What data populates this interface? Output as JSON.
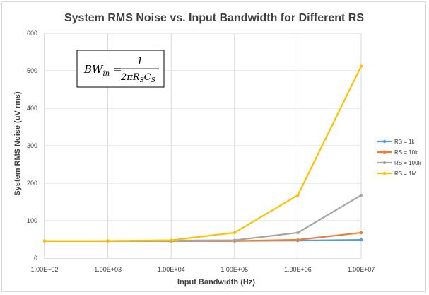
{
  "chart_data": {
    "type": "line",
    "title": "System RMS Noise vs. Input Bandwidth for Different RS",
    "xlabel": "Input Bandwidth (Hz)",
    "ylabel": "System RMS Noise (uV rms)",
    "x_scale": "log",
    "categories": [
      "1.00E+02",
      "1.00E+03",
      "1.00E+04",
      "1.00E+05",
      "1.00E+06",
      "1.00E+07"
    ],
    "x": [
      100,
      1000,
      10000,
      100000,
      1000000,
      10000000
    ],
    "ylim": [
      0,
      600
    ],
    "yticks": [
      0,
      100,
      200,
      300,
      400,
      500,
      600
    ],
    "grid": true,
    "legend_position": "right",
    "series": [
      {
        "name": "RS = 1k",
        "color": "#5b9bd5",
        "values": [
          46,
          46,
          46,
          46,
          47,
          49
        ]
      },
      {
        "name": "RS = 10k",
        "color": "#ed7d31",
        "values": [
          46,
          46,
          46,
          46,
          49,
          68
        ]
      },
      {
        "name": "RS = 100k",
        "color": "#a5a5a5",
        "values": [
          46,
          46,
          47,
          48,
          68,
          168
        ]
      },
      {
        "name": "RS = 1M",
        "color": "#ffc000",
        "values": [
          46,
          46,
          48,
          68,
          168,
          512
        ]
      }
    ],
    "annotation": {
      "lhs": "BW",
      "lhs_sub": "in",
      "numerator": "1",
      "denominator_prefix": "2πR",
      "denominator_sub1": "S",
      "denominator_mid": "C",
      "denominator_sub2": "S"
    }
  }
}
